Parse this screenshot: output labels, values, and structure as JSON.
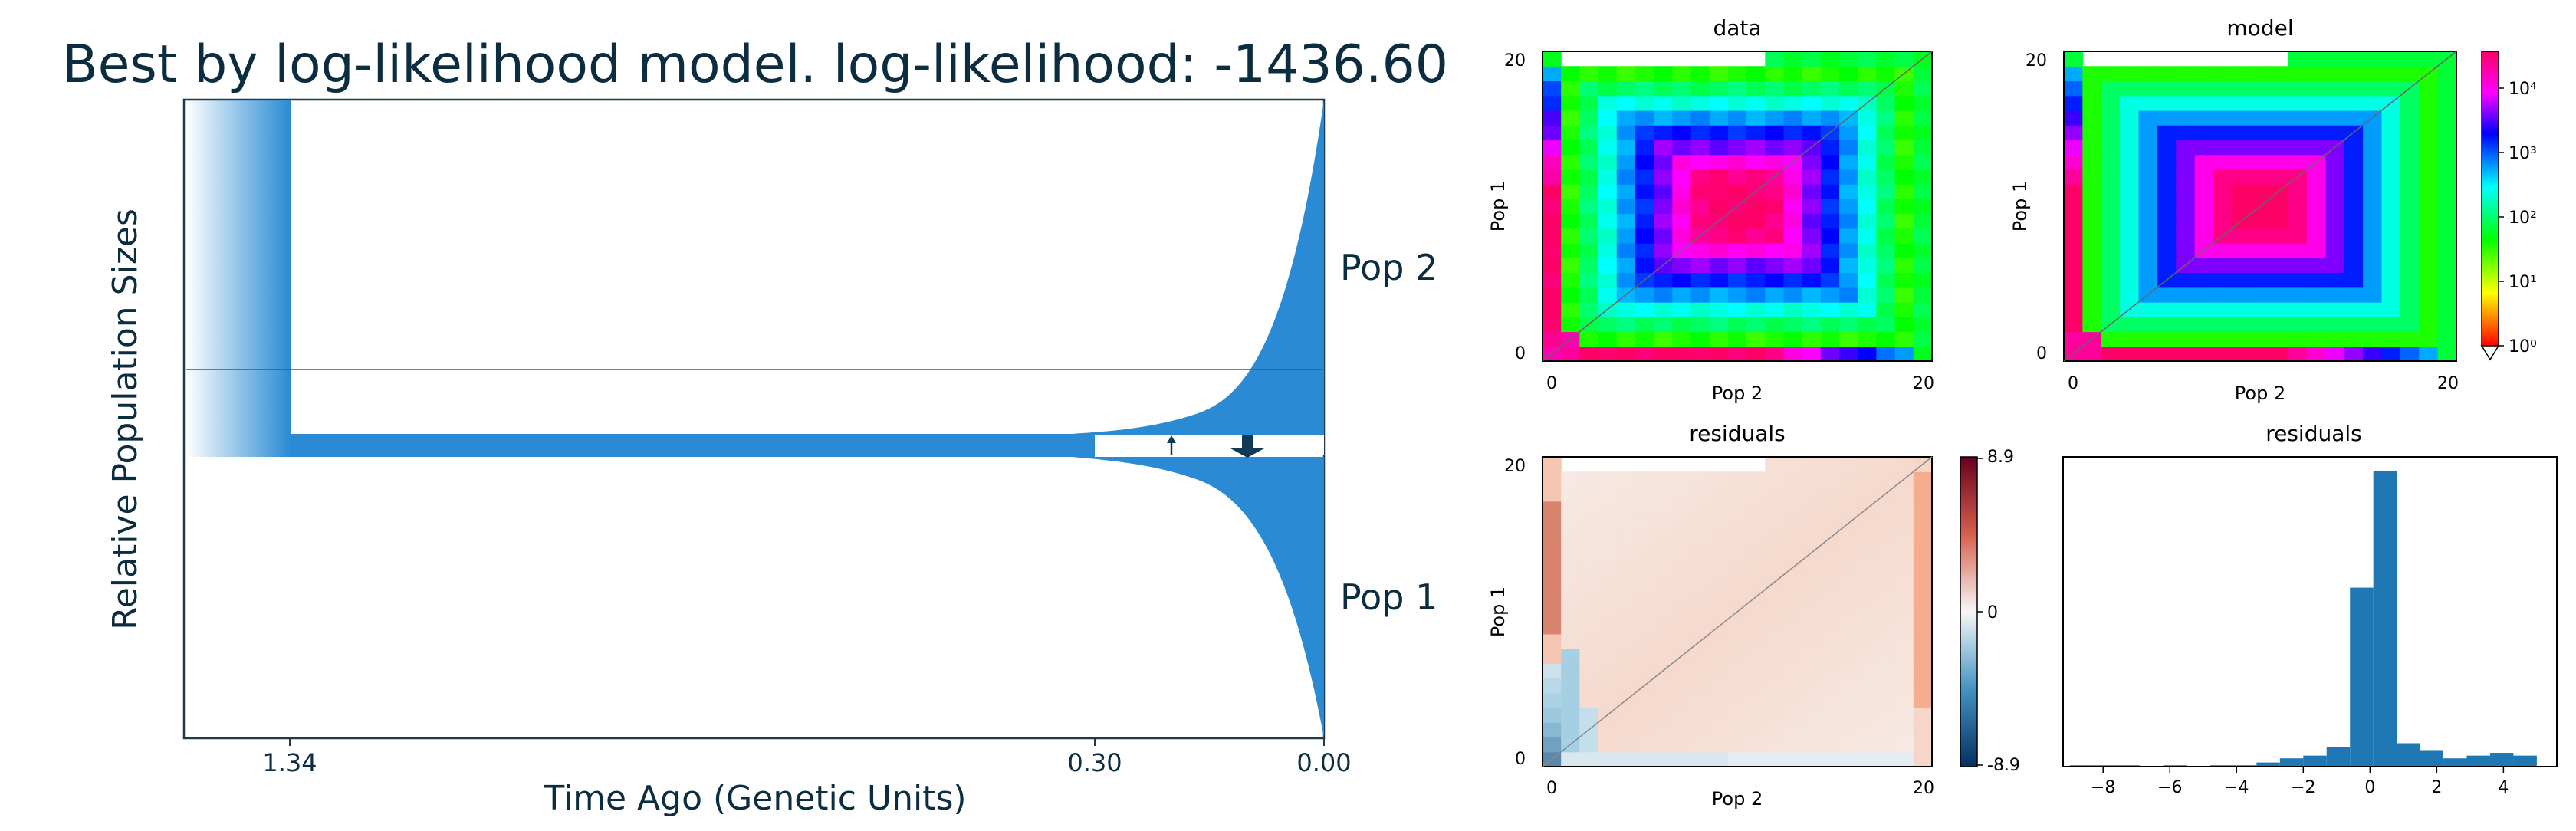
{
  "colors": {
    "pop_fill": "#2a8bd4",
    "arrow": "#0f3b57",
    "title_text": "#0c2d40"
  },
  "demography": {
    "title": "Best by log-likelihood model. log-likelihood: -1436.60",
    "ylabel": "Relative Population Sizes",
    "xlabel": "Time Ago (Genetic Units)",
    "time_ticks": [
      "1.34",
      "0.30",
      "0.00"
    ],
    "pop_labels": [
      "Pop 2",
      "Pop 1"
    ],
    "chart_data": {
      "type": "area",
      "x": [
        1.34,
        0.3,
        0.0
      ],
      "tick_labels": [
        "1.34",
        "0.30",
        "0.00"
      ],
      "xlabel": "Time Ago (Genetic Units)",
      "ylabel": "Relative Population Sizes",
      "title": "Best by log-likelihood model. log-likelihood: -1436.60",
      "series": [
        {
          "name": "Pop 2"
        },
        {
          "name": "Pop 1"
        }
      ]
    }
  },
  "panels": {
    "data": {
      "title": "data",
      "xlabel": "Pop 2",
      "ylabel": "Pop 1",
      "x_ticks": [
        "0",
        "20"
      ],
      "y_ticks": [
        "0",
        "20"
      ]
    },
    "model": {
      "title": "model",
      "xlabel": "Pop 2",
      "ylabel": "Pop 1",
      "x_ticks": [
        "0",
        "20"
      ],
      "y_ticks": [
        "0",
        "20"
      ]
    },
    "resid_map": {
      "title": "residuals",
      "xlabel": "Pop 2",
      "ylabel": "Pop 1",
      "x_ticks": [
        "0",
        "20"
      ],
      "y_ticks": [
        "0",
        "20"
      ]
    },
    "resid_hist": {
      "title": "residuals",
      "x_ticks": [
        "−8",
        "−6",
        "−4",
        "−2",
        "0",
        "2",
        "4"
      ]
    }
  },
  "colorbars": {
    "log": {
      "tick_labels": [
        "10⁰",
        "10¹",
        "10²",
        "10³",
        "10⁴"
      ]
    },
    "diverging": {
      "tick_labels": [
        "8.9",
        "0",
        "-8.9"
      ]
    }
  },
  "histogram": {
    "chart_data": {
      "type": "bar",
      "title": "residuals",
      "bin_edges": [
        -9,
        -8.3,
        -7.6,
        -6.9,
        -6.2,
        -5.5,
        -4.8,
        -4.1,
        -3.4,
        -2.7,
        -2.0,
        -1.3,
        -0.6,
        0.1,
        0.8,
        1.5,
        2.2,
        2.9,
        3.6,
        4.3,
        5.0
      ],
      "counts": [
        1,
        1,
        1,
        0,
        1,
        0,
        1,
        1,
        3,
        6,
        8,
        14,
        130,
        215,
        17,
        12,
        6,
        8,
        10,
        8
      ],
      "xlim": [
        -9.2,
        5.6
      ],
      "ylim": [
        0,
        225
      ]
    }
  }
}
